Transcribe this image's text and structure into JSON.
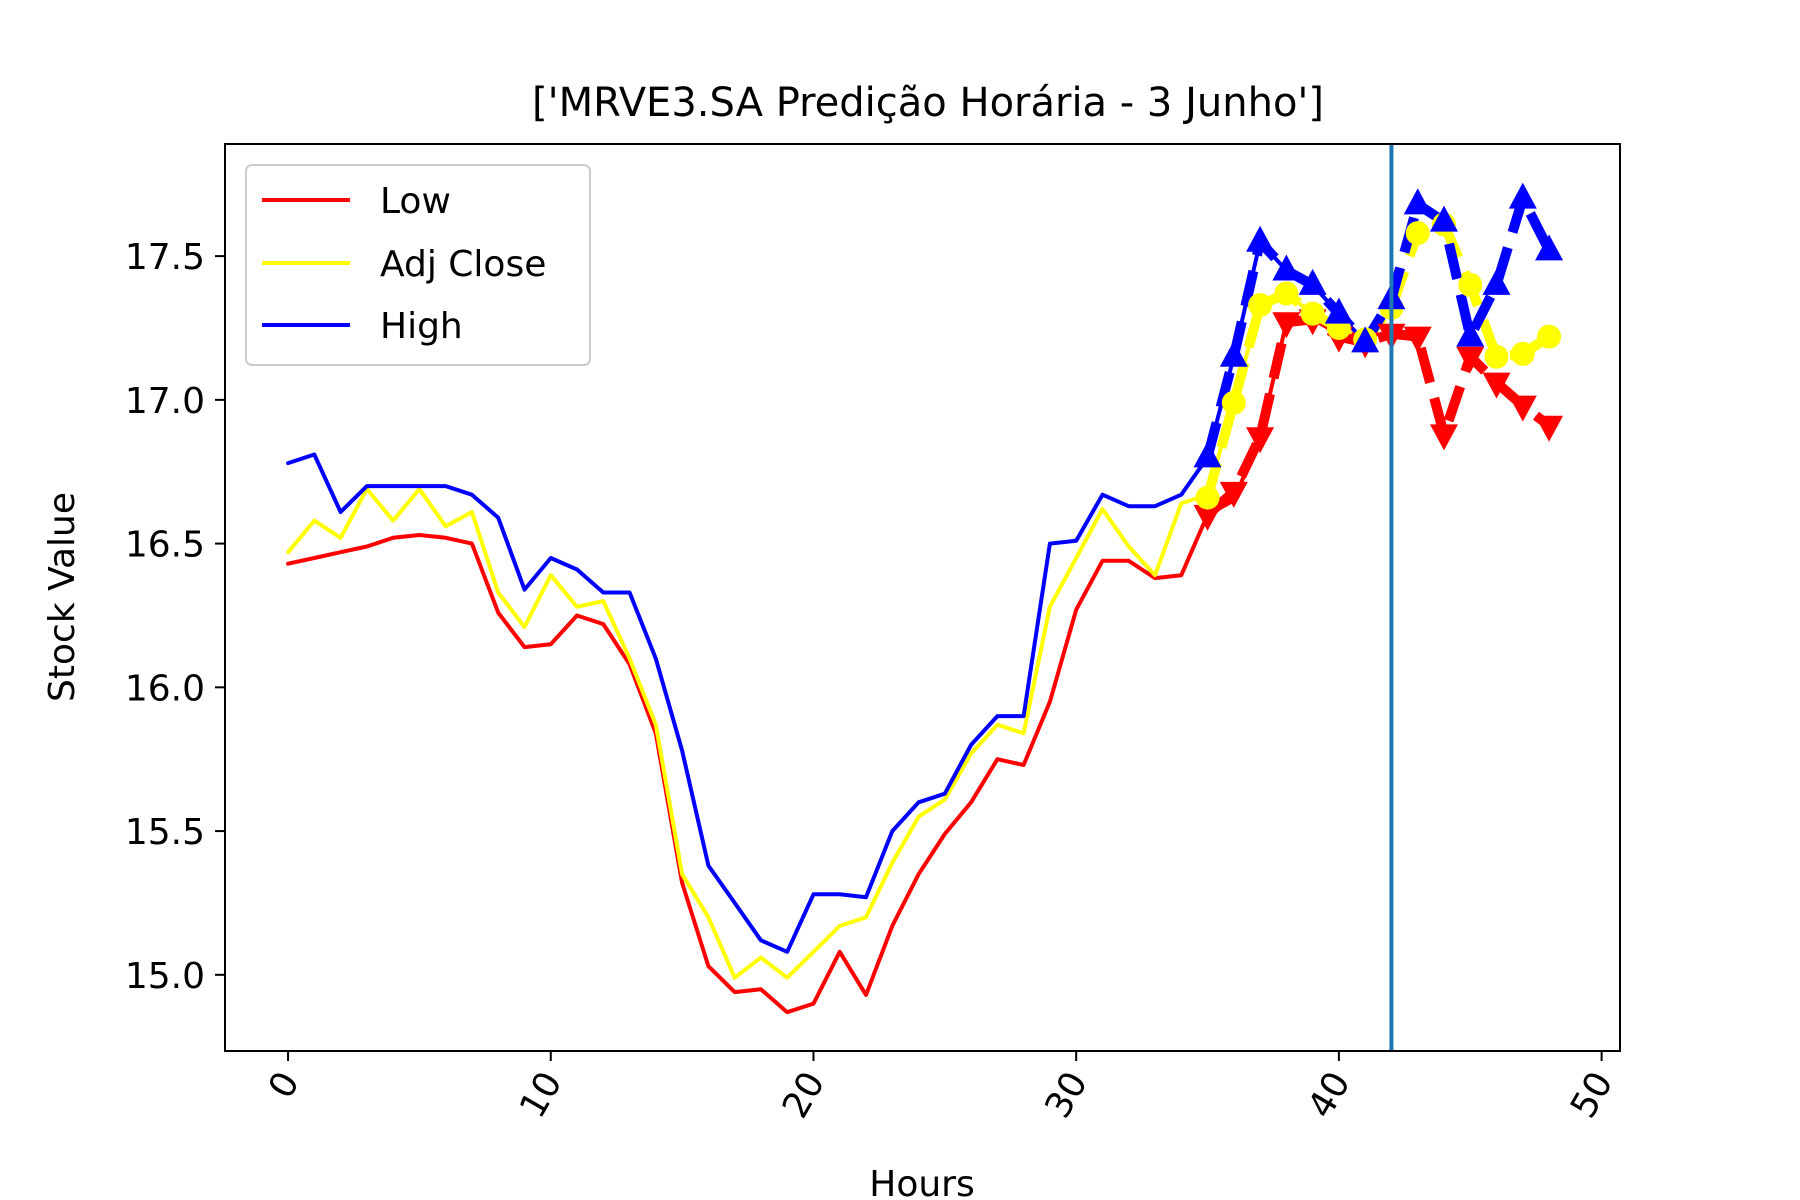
{
  "chart_data": {
    "type": "line",
    "title": "['MRVE3.SA Predição Horária - 3 Junho']",
    "xlabel": "Hours",
    "ylabel": "Stock Value",
    "xlim": [
      -2.4,
      50.7
    ],
    "ylim": [
      14.735,
      17.89
    ],
    "xticks": [
      0,
      10,
      20,
      30,
      40,
      50
    ],
    "xtick_labels": [
      "0",
      "10",
      "20",
      "30",
      "40",
      "50"
    ],
    "yticks": [
      15.0,
      15.5,
      16.0,
      16.5,
      17.0,
      17.5
    ],
    "ytick_labels": [
      "15.0",
      "15.5",
      "16.0",
      "16.5",
      "17.0",
      "17.5"
    ],
    "grid": false,
    "legend_position": "upper-left",
    "vline_x": 42,
    "vline_color": "#1f77b4",
    "series": [
      {
        "name": "Low",
        "color": "#ff0000",
        "x": [
          0,
          1,
          2,
          3,
          4,
          5,
          6,
          7,
          8,
          9,
          10,
          11,
          12,
          13,
          14,
          15,
          16,
          17,
          18,
          19,
          20,
          21,
          22,
          23,
          24,
          25,
          26,
          27,
          28,
          29,
          30,
          31,
          32,
          33,
          34,
          35,
          36,
          37,
          38,
          39,
          40,
          41
        ],
        "values": [
          16.43,
          16.45,
          16.47,
          16.49,
          16.52,
          16.53,
          16.52,
          16.5,
          16.26,
          16.14,
          16.15,
          16.25,
          16.22,
          16.08,
          15.84,
          15.32,
          15.03,
          14.94,
          14.95,
          14.87,
          14.9,
          15.08,
          14.93,
          15.17,
          15.35,
          15.49,
          15.6,
          15.75,
          15.73,
          15.95,
          16.27,
          16.44,
          16.44,
          16.38,
          16.39,
          16.6,
          16.65,
          16.87,
          17.27,
          17.28,
          17.23,
          17.2
        ]
      },
      {
        "name": "Adj Close",
        "color": "#ffff00",
        "x": [
          0,
          1,
          2,
          3,
          4,
          5,
          6,
          7,
          8,
          9,
          10,
          11,
          12,
          13,
          14,
          15,
          16,
          17,
          18,
          19,
          20,
          21,
          22,
          23,
          24,
          25,
          26,
          27,
          28,
          29,
          30,
          31,
          32,
          33,
          34,
          35,
          36,
          37,
          38,
          39,
          40,
          41
        ],
        "values": [
          16.47,
          16.58,
          16.52,
          16.69,
          16.58,
          16.69,
          16.56,
          16.61,
          16.33,
          16.21,
          16.39,
          16.28,
          16.3,
          16.1,
          15.87,
          15.35,
          15.2,
          14.99,
          15.06,
          14.99,
          15.08,
          15.17,
          15.2,
          15.39,
          15.55,
          15.61,
          15.77,
          15.87,
          15.84,
          16.28,
          16.45,
          16.62,
          16.49,
          16.39,
          16.64,
          16.67,
          16.99,
          17.33,
          17.37,
          17.3,
          17.25,
          17.21
        ]
      },
      {
        "name": "High",
        "color": "#0000ff",
        "x": [
          0,
          1,
          2,
          3,
          4,
          5,
          6,
          7,
          8,
          9,
          10,
          11,
          12,
          13,
          14,
          15,
          16,
          17,
          18,
          19,
          20,
          21,
          22,
          23,
          24,
          25,
          26,
          27,
          28,
          29,
          30,
          31,
          32,
          33,
          34,
          35,
          36,
          37,
          38,
          39,
          40,
          41
        ],
        "values": [
          16.78,
          16.81,
          16.61,
          16.7,
          16.7,
          16.7,
          16.7,
          16.67,
          16.59,
          16.34,
          16.45,
          16.41,
          16.33,
          16.33,
          16.1,
          15.78,
          15.38,
          15.25,
          15.12,
          15.08,
          15.28,
          15.28,
          15.27,
          15.5,
          15.6,
          15.63,
          15.8,
          15.9,
          15.9,
          16.5,
          16.51,
          16.67,
          16.63,
          16.63,
          16.67,
          16.8,
          17.15,
          17.55,
          17.45,
          17.4,
          17.3,
          17.2
        ]
      },
      {
        "color": "#ff0000",
        "dashed": true,
        "marker": "triangle-down",
        "x": [
          35,
          36,
          37,
          38,
          39,
          40,
          41,
          42,
          43,
          44,
          45,
          46,
          47,
          48
        ],
        "values": [
          16.6,
          16.68,
          16.87,
          17.27,
          17.28,
          17.22,
          17.2,
          17.23,
          17.22,
          16.88,
          17.15,
          17.06,
          16.98,
          16.91
        ]
      },
      {
        "color": "#ffff00",
        "dashed": true,
        "marker": "circle",
        "x": [
          35,
          36,
          37,
          38,
          39,
          40,
          41,
          42,
          43,
          44,
          45,
          46,
          47,
          48
        ],
        "values": [
          16.66,
          16.99,
          17.33,
          17.37,
          17.3,
          17.25,
          17.21,
          17.32,
          17.58,
          17.61,
          17.4,
          17.15,
          17.16,
          17.22
        ]
      },
      {
        "color": "#0000ff",
        "dashed": true,
        "marker": "triangle-up",
        "x": [
          35,
          36,
          37,
          38,
          39,
          40,
          41,
          42,
          43,
          44,
          45,
          46,
          47,
          48
        ],
        "values": [
          16.8,
          17.15,
          17.55,
          17.45,
          17.4,
          17.3,
          17.2,
          17.35,
          17.68,
          17.62,
          17.22,
          17.4,
          17.7,
          17.52
        ]
      }
    ]
  }
}
